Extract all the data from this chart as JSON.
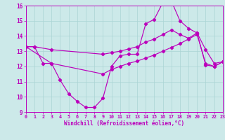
{
  "xlabel": "Windchill (Refroidissement éolien,°C)",
  "xlim": [
    0,
    23
  ],
  "ylim": [
    9,
    16
  ],
  "yticks": [
    9,
    10,
    11,
    12,
    13,
    14,
    15,
    16
  ],
  "xticks": [
    0,
    1,
    2,
    3,
    4,
    5,
    6,
    7,
    8,
    9,
    10,
    11,
    12,
    13,
    14,
    15,
    16,
    17,
    18,
    19,
    20,
    21,
    22,
    23
  ],
  "background_color": "#cce9e9",
  "grid_color": "#aad4d4",
  "line_color": "#bb00bb",
  "curve1_x": [
    0,
    1,
    2,
    3,
    4,
    5,
    6,
    7,
    8,
    9,
    10,
    11,
    12,
    13,
    14,
    15,
    16,
    17,
    18,
    19,
    20,
    21,
    22,
    23
  ],
  "curve1_y": [
    13.3,
    13.3,
    12.2,
    12.2,
    11.1,
    10.2,
    9.7,
    9.3,
    9.3,
    9.9,
    12.0,
    12.7,
    12.8,
    12.8,
    14.8,
    15.1,
    16.2,
    16.3,
    15.0,
    14.5,
    14.2,
    12.1,
    12.0,
    12.3
  ],
  "curve2_x": [
    0,
    1,
    3,
    9,
    10,
    11,
    12,
    13,
    14,
    15,
    16,
    17,
    18,
    19,
    20,
    21,
    22,
    23
  ],
  "curve2_y": [
    13.3,
    13.3,
    13.1,
    12.8,
    12.9,
    13.0,
    13.15,
    13.3,
    13.6,
    13.8,
    14.1,
    14.4,
    14.1,
    13.85,
    14.2,
    13.1,
    12.2,
    12.3
  ],
  "curve3_x": [
    0,
    3,
    9,
    10,
    11,
    12,
    13,
    14,
    15,
    16,
    17,
    18,
    19,
    20,
    21,
    22,
    23
  ],
  "curve3_y": [
    13.3,
    12.2,
    11.5,
    11.8,
    12.0,
    12.2,
    12.35,
    12.55,
    12.75,
    13.0,
    13.25,
    13.5,
    13.8,
    14.1,
    12.2,
    12.0,
    12.3
  ]
}
